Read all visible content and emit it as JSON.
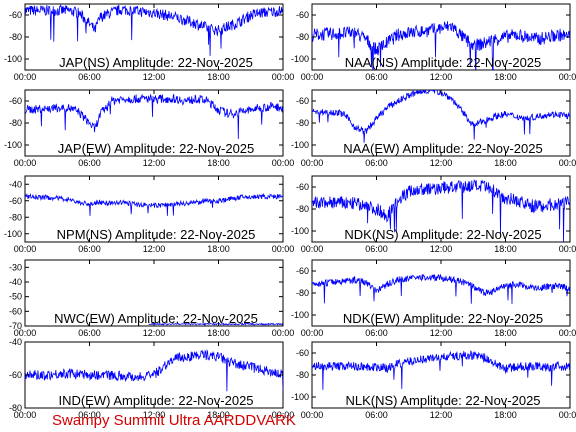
{
  "footer": "Swampy Summit Ultra AARDDVARK",
  "colors": {
    "trace": "#0000ff",
    "footer": "#d40000",
    "frame": "#000000"
  },
  "chart_data": [
    {
      "type": "line",
      "title": "JAP(NS) Amplitude: 22-Nov-2025",
      "x_ticks": [
        "00:00",
        "06:00",
        "12:00",
        "18:00",
        "00:00"
      ],
      "ylim": [
        -110,
        -50
      ],
      "y_ticks": [
        -100,
        -80,
        -60
      ],
      "x_hours": [
        0,
        2,
        4,
        5,
        6,
        6.5,
        7,
        8,
        9,
        10,
        11,
        12,
        13,
        14,
        15,
        16,
        17,
        18,
        19,
        20,
        21,
        22,
        23,
        24
      ],
      "y": [
        -56,
        -56,
        -56,
        -58,
        -68,
        -74,
        -62,
        -58,
        -55,
        -56,
        -57,
        -58,
        -60,
        -62,
        -65,
        -68,
        -72,
        -74,
        -70,
        -66,
        -60,
        -58,
        -57,
        -56
      ],
      "noise": 5
    },
    {
      "type": "line",
      "title": "NAA(NS) Amplitude: 22-Nov-2025",
      "x_ticks": [
        "00:00",
        "06:00",
        "12:00",
        "18:00",
        "00:00"
      ],
      "ylim": [
        -110,
        -50
      ],
      "y_ticks": [
        -100,
        -80,
        -60
      ],
      "x_hours": [
        0,
        2,
        4,
        5,
        6,
        7,
        8,
        9,
        10,
        11,
        12,
        13,
        14,
        15,
        16,
        17,
        18,
        19,
        20,
        21,
        22,
        23,
        24
      ],
      "y": [
        -78,
        -77,
        -76,
        -82,
        -92,
        -85,
        -78,
        -76,
        -75,
        -74,
        -72,
        -70,
        -80,
        -88,
        -86,
        -82,
        -80,
        -78,
        -80,
        -82,
        -80,
        -78,
        -80
      ],
      "noise": 6
    },
    {
      "type": "line",
      "title": "JAP(EW) Amplitude: 22-Nov-2025",
      "x_ticks": [
        "00:00",
        "06:00",
        "12:00",
        "18:00",
        "00:00"
      ],
      "ylim": [
        -110,
        -50
      ],
      "y_ticks": [
        -100,
        -80,
        -60
      ],
      "x_hours": [
        0,
        2,
        4,
        5,
        6,
        6.5,
        7,
        8,
        9,
        10,
        12,
        14,
        15,
        16,
        17,
        18,
        19,
        20,
        21,
        22,
        23,
        24
      ],
      "y": [
        -68,
        -67,
        -66,
        -70,
        -80,
        -86,
        -72,
        -60,
        -58,
        -58,
        -58,
        -58,
        -60,
        -58,
        -60,
        -68,
        -72,
        -70,
        -68,
        -66,
        -65,
        -66
      ],
      "noise": 4
    },
    {
      "type": "line",
      "title": "NAA(EW) Amplitude: 22-Nov-2025",
      "x_ticks": [
        "00:00",
        "06:00",
        "12:00",
        "18:00",
        "00:00"
      ],
      "ylim": [
        -110,
        -50
      ],
      "y_ticks": [
        -100,
        -80,
        -60
      ],
      "x_hours": [
        0,
        2,
        3,
        4,
        5,
        6,
        7,
        8,
        9,
        10,
        11,
        12,
        13,
        14,
        15,
        16,
        17,
        18,
        19,
        20,
        21,
        22,
        23,
        24
      ],
      "y": [
        -70,
        -70,
        -72,
        -84,
        -88,
        -76,
        -66,
        -60,
        -55,
        -52,
        -50,
        -52,
        -58,
        -70,
        -82,
        -78,
        -74,
        -72,
        -74,
        -76,
        -74,
        -72,
        -72,
        -74
      ],
      "noise": 3
    },
    {
      "type": "line",
      "title": "NPM(NS) Amplitude: 22-Nov-2025",
      "x_ticks": [
        "00:00",
        "06:00",
        "12:00",
        "18:00",
        "00:00"
      ],
      "ylim": [
        -110,
        -30
      ],
      "y_ticks": [
        -100,
        -80,
        -60,
        -40
      ],
      "x_hours": [
        0,
        2,
        4,
        5,
        6,
        7,
        8,
        9,
        10,
        12,
        14,
        15,
        16,
        17,
        18,
        19,
        20,
        22,
        24
      ],
      "y": [
        -55,
        -56,
        -58,
        -62,
        -64,
        -62,
        -63,
        -62,
        -64,
        -66,
        -64,
        -63,
        -62,
        -60,
        -60,
        -58,
        -56,
        -55,
        -55
      ],
      "noise": 3
    },
    {
      "type": "line",
      "title": "NDK(NS) Amplitude: 22-Nov-2025",
      "x_ticks": [
        "00:00",
        "06:00",
        "12:00",
        "18:00",
        "00:00"
      ],
      "ylim": [
        -110,
        -50
      ],
      "y_ticks": [
        -100,
        -80,
        -60
      ],
      "x_hours": [
        0,
        2,
        4,
        6,
        7,
        8,
        9,
        10,
        11,
        12,
        13,
        14,
        15,
        16,
        17,
        18,
        19,
        20,
        21,
        22,
        23,
        24
      ],
      "y": [
        -75,
        -74,
        -75,
        -80,
        -86,
        -72,
        -64,
        -62,
        -62,
        -61,
        -60,
        -60,
        -59,
        -60,
        -64,
        -70,
        -72,
        -76,
        -78,
        -76,
        -76,
        -74
      ],
      "noise": 6
    },
    {
      "type": "line",
      "title": "NWC(EW) Amplitude: 22-Nov-2025",
      "x_ticks": [
        "00:00",
        "06:00",
        "12:00",
        "18:00",
        "00:00"
      ],
      "ylim": [
        -70,
        -25
      ],
      "y_ticks": [
        -70,
        -60,
        -50,
        -40,
        -30
      ],
      "x_hours": [
        11.5,
        12,
        13,
        14,
        15,
        16,
        17,
        18,
        19,
        20,
        21,
        22,
        23,
        24
      ],
      "y": [
        -69,
        -68.5,
        -68.8,
        -68.6,
        -68.7,
        -68.8,
        -68.6,
        -68.7,
        -68.8,
        -68.6,
        -68.7,
        -68.8,
        -68.7,
        -68.8
      ],
      "noise": 0.5
    },
    {
      "type": "line",
      "title": "NDK(EW) Amplitude: 22-Nov-2025",
      "x_ticks": [
        "00:00",
        "06:00",
        "12:00",
        "18:00",
        "00:00"
      ],
      "ylim": [
        -110,
        -50
      ],
      "y_ticks": [
        -100,
        -80,
        -60
      ],
      "x_hours": [
        0,
        2,
        4,
        5,
        6,
        7,
        8,
        9,
        10,
        12,
        13,
        14,
        15,
        16,
        17,
        18,
        19,
        20,
        21,
        22,
        23,
        24
      ],
      "y": [
        -72,
        -70,
        -68,
        -70,
        -78,
        -72,
        -68,
        -67,
        -66,
        -66,
        -68,
        -70,
        -74,
        -80,
        -78,
        -74,
        -72,
        -74,
        -76,
        -74,
        -74,
        -76
      ],
      "noise": 3
    },
    {
      "type": "line",
      "title": "IND(EW) Amplitude: 22-Nov-2025",
      "x_ticks": [
        "00:00",
        "06:00",
        "12:00",
        "18:00",
        "00:00"
      ],
      "ylim": [
        -80,
        -40
      ],
      "y_ticks": [
        -80,
        -60,
        -40
      ],
      "x_hours": [
        0,
        2,
        4,
        6,
        8,
        10,
        11,
        12,
        13,
        14,
        15,
        16,
        17,
        18,
        19,
        20,
        21,
        22,
        23,
        24
      ],
      "y": [
        -60,
        -60,
        -59,
        -60,
        -60,
        -61,
        -61,
        -60,
        -54,
        -50,
        -49,
        -48,
        -48,
        -49,
        -52,
        -54,
        -55,
        -57,
        -58,
        -60
      ],
      "noise": 3
    },
    {
      "type": "line",
      "title": "NLK(NS) Amplitude: 22-Nov-2025",
      "x_ticks": [
        "00:00",
        "06:00",
        "12:00",
        "18:00",
        "00:00"
      ],
      "ylim": [
        -110,
        -50
      ],
      "y_ticks": [
        -100,
        -80,
        -60
      ],
      "x_hours": [
        0,
        2,
        4,
        6,
        7,
        8,
        10,
        12,
        13,
        14,
        15,
        16,
        17,
        18,
        19,
        20,
        21,
        22,
        23,
        24
      ],
      "y": [
        -72,
        -72,
        -72,
        -73,
        -74,
        -70,
        -66,
        -64,
        -63,
        -62,
        -62,
        -64,
        -70,
        -74,
        -73,
        -72,
        -72,
        -73,
        -72,
        -73
      ],
      "noise": 4
    }
  ]
}
